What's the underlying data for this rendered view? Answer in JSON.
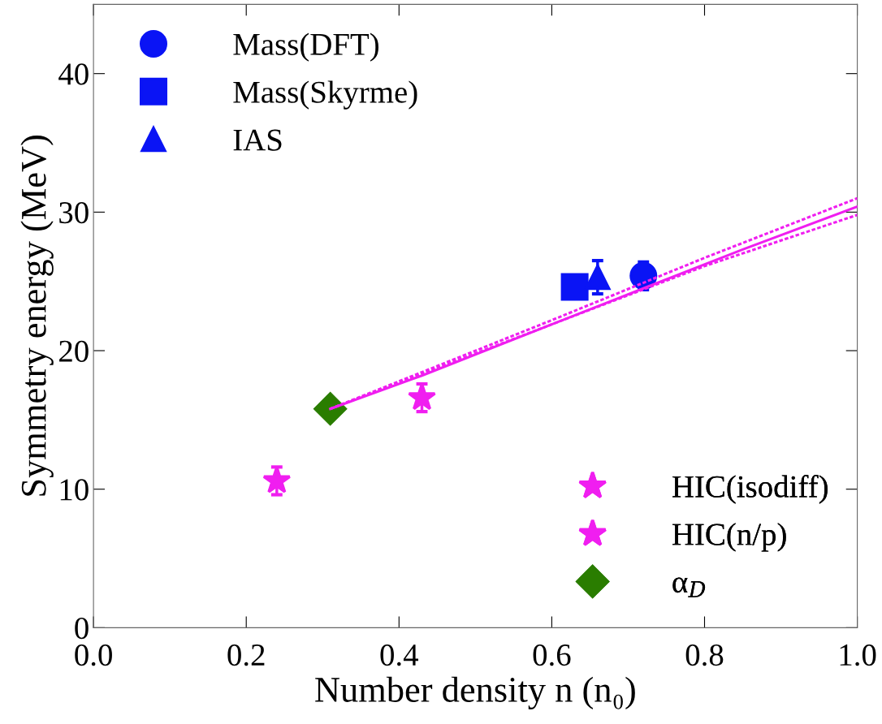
{
  "chart_data": {
    "type": "scatter",
    "xlabel": "Number density n (n₀)",
    "ylabel": "Symmetry energy (MeV)",
    "xlim": [
      0.0,
      1.0
    ],
    "xticks": [
      {
        "value": 0.0,
        "label": "0.0"
      },
      0.2,
      0.4,
      0.6,
      0.8,
      {
        "value": 1.0,
        "label": "1.0"
      }
    ],
    "ylim": [
      0,
      45
    ],
    "yticks": [
      0,
      10,
      20,
      30,
      40
    ],
    "grid": false,
    "legend": [
      "top left",
      "bottom right"
    ],
    "series": [
      {
        "type": "line",
        "color": "#f01ef0",
        "marker": "none",
        "line_style": "solid",
        "x": [
          0.31,
          0.43,
          0.6,
          0.72,
          0.85,
          1.0
        ],
        "values": [
          15.8,
          18.2,
          21.9,
          24.5,
          27.3,
          30.4
        ]
      },
      {
        "type": "line",
        "color": "#f01ef0",
        "marker": "none",
        "line_style": "dashed",
        "x": [
          0.31,
          0.6,
          0.8,
          1.0
        ],
        "values": [
          15.8,
          22.2,
          26.7,
          31.0
        ]
      },
      {
        "type": "line",
        "color": "#f01ef0",
        "marker": "none",
        "line_style": "dashed",
        "x": [
          0.31,
          0.6,
          0.8,
          1.0
        ],
        "values": [
          15.8,
          21.9,
          26.1,
          29.8
        ]
      },
      {
        "name": "Mass(DFT)",
        "color": "#0a14f5",
        "marker": "circle",
        "x": [
          0.72
        ],
        "values": [
          25.4
        ],
        "errors": [
          1.0
        ]
      },
      {
        "name": "Mass(Skyrme)",
        "color": "#0a14f5",
        "marker": "square",
        "x": [
          0.63
        ],
        "values": [
          24.6
        ],
        "errors": [
          null
        ]
      },
      {
        "name": "IAS",
        "color": "#0a14f5",
        "marker": "triangle",
        "x": [
          0.66
        ],
        "values": [
          25.3
        ],
        "errors": [
          1.2
        ]
      },
      {
        "name": "HIC(isodiff)",
        "color": "#f01ef0",
        "marker": "star",
        "x": [
          0.24
        ],
        "values": [
          10.6
        ],
        "errors": [
          1.0
        ]
      },
      {
        "name": "HIC(n/p)",
        "color": "#f01ef0",
        "marker": "star",
        "x": [
          0.43
        ],
        "values": [
          16.6
        ],
        "errors": [
          1.0
        ]
      },
      {
        "name": "α$_{D}$",
        "color": "#2a7d00",
        "marker": "diamond",
        "x": [
          0.31
        ],
        "values": [
          15.8
        ],
        "errors": [
          null
        ]
      }
    ]
  }
}
